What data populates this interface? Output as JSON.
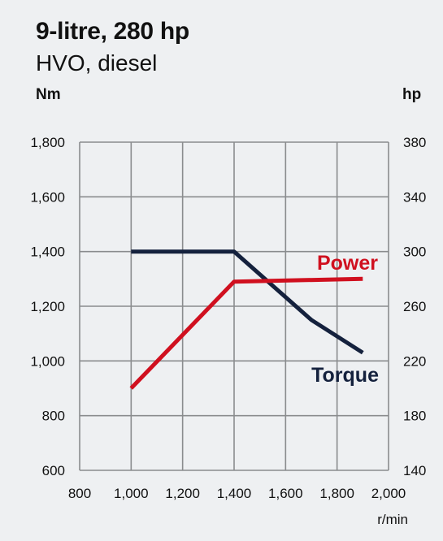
{
  "chart_data": {
    "type": "line",
    "title": "9-litre, 280 hp",
    "subtitle": "HVO, diesel",
    "y_left_label": "Nm",
    "y_right_label": "hp",
    "xlabel": "r/min",
    "x_ticks": [
      "800",
      "1,000",
      "1,200",
      "1,400",
      "1,600",
      "1,800",
      "2,000"
    ],
    "x_range": [
      800,
      2000
    ],
    "y_left_ticks": [
      "600",
      "800",
      "1,000",
      "1,200",
      "1,400",
      "1,600",
      "1,800"
    ],
    "y_left_range": [
      600,
      1800
    ],
    "y_right_ticks": [
      "140",
      "180",
      "220",
      "260",
      "300",
      "340",
      "380"
    ],
    "y_right_range": [
      140,
      380
    ],
    "grid": true,
    "series": [
      {
        "name": "Torque",
        "axis": "left",
        "color": "#14213d",
        "x": [
          1000,
          1400,
          1700,
          1900
        ],
        "values": [
          1400,
          1400,
          1150,
          1030
        ]
      },
      {
        "name": "Power",
        "axis": "right",
        "color": "#d0101f",
        "x": [
          1000,
          1400,
          1900
        ],
        "values": [
          200,
          278,
          280
        ]
      }
    ]
  }
}
